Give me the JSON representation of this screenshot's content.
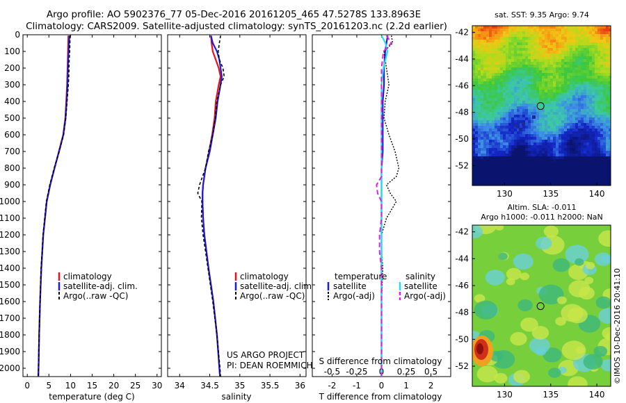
{
  "title": {
    "line1": "Argo profile: AO 5902376_77 05-Dec-2016 20161205_465 47.5278S 133.8963E",
    "line2": "Climatology: CARS2009. Satellite-adjusted climatology: synTS_20161203.nc (2.2d earlier)"
  },
  "colors": {
    "climatology": "#e8101a",
    "satellite": "#1a1ad8",
    "argo": "#000000",
    "sal_satellite": "#22ddee",
    "sal_argo": "#e020e0"
  },
  "credits": {
    "project": "US ARGO PROJECT",
    "pi": "PI: DEAN ROEMMICH",
    "stamp": "©IMOS 10-Dec-2016 20:41:10"
  },
  "chart_data": [
    {
      "type": "line",
      "name": "temperature-profile",
      "xlabel": "temperature (deg C)",
      "xlim": [
        -1,
        31
      ],
      "ylim": [
        2050,
        0
      ],
      "xticks": [
        "0",
        "5",
        "10",
        "15",
        "20",
        "25",
        "30"
      ],
      "yticks": [
        "0",
        "100",
        "200",
        "300",
        "400",
        "500",
        "600",
        "700",
        "800",
        "900",
        "1000",
        "1100",
        "1200",
        "1300",
        "1400",
        "1500",
        "1600",
        "1700",
        "1800",
        "1900",
        "2000"
      ],
      "depth": [
        5,
        50,
        100,
        150,
        200,
        250,
        300,
        400,
        500,
        600,
        700,
        800,
        900,
        1000,
        1200,
        1400,
        1600,
        1800,
        2000,
        2050
      ],
      "series": [
        {
          "name": "climatology",
          "color": "#e8101a",
          "width": 2.2,
          "dash": "",
          "values": [
            9.5,
            9.45,
            9.4,
            9.35,
            9.3,
            9.25,
            9.2,
            9.0,
            8.8,
            8.3,
            7.3,
            6.3,
            5.3,
            4.5,
            3.7,
            3.25,
            2.95,
            2.75,
            2.6,
            2.55
          ]
        },
        {
          "name": "satellite-adj. clim.",
          "color": "#1a1ad8",
          "width": 2.2,
          "dash": "",
          "values": [
            9.75,
            9.65,
            9.55,
            9.45,
            9.4,
            9.35,
            9.3,
            9.1,
            8.85,
            8.35,
            7.35,
            6.3,
            5.3,
            4.5,
            3.7,
            3.25,
            2.95,
            2.75,
            2.6,
            2.55
          ]
        },
        {
          "name": "Argo(..raw -QC)",
          "color": "#000000",
          "width": 1.6,
          "dash": "4,3",
          "values": [
            9.9,
            9.85,
            9.8,
            9.7,
            9.65,
            9.6,
            9.5,
            9.2,
            8.9,
            8.4,
            7.4,
            6.2,
            5.2,
            4.4,
            3.65,
            3.2,
            2.95,
            2.75,
            2.6,
            2.55
          ]
        }
      ],
      "legend": {
        "placement": "middle",
        "items": [
          "climatology",
          "satellite-adj. clim.",
          "Argo(..raw -QC)"
        ]
      }
    },
    {
      "type": "line",
      "name": "salinity-profile",
      "xlabel": "salinity",
      "xlim": [
        33.8,
        36.1
      ],
      "ylim": [
        2050,
        0
      ],
      "xticks": [
        "34",
        "34.5",
        "35",
        "35.5",
        "36"
      ],
      "depth": [
        5,
        50,
        100,
        150,
        200,
        250,
        300,
        400,
        500,
        600,
        700,
        800,
        900,
        950,
        1000,
        1100,
        1200,
        1400,
        1600,
        1800,
        2000,
        2050
      ],
      "series": [
        {
          "name": "climatology",
          "color": "#e8101a",
          "width": 2.2,
          "dash": "",
          "values": [
            34.52,
            34.53,
            34.55,
            34.6,
            34.65,
            34.68,
            34.65,
            34.6,
            34.58,
            34.54,
            34.49,
            34.43,
            34.39,
            34.38,
            34.38,
            34.39,
            34.41,
            34.48,
            34.56,
            34.62,
            34.66,
            34.67
          ]
        },
        {
          "name": "satellite-adj. clim.",
          "color": "#1a1ad8",
          "width": 2.2,
          "dash": "",
          "values": [
            34.52,
            34.55,
            34.62,
            34.66,
            34.68,
            34.7,
            34.68,
            34.63,
            34.6,
            34.55,
            34.5,
            34.43,
            34.39,
            34.38,
            34.38,
            34.39,
            34.41,
            34.48,
            34.56,
            34.62,
            34.66,
            34.67
          ]
        },
        {
          "name": "Argo(..raw -QC)",
          "color": "#000000",
          "width": 1.6,
          "dash": "4,3",
          "values": [
            34.68,
            34.66,
            34.64,
            34.66,
            34.72,
            34.74,
            34.68,
            34.62,
            34.59,
            34.55,
            34.48,
            34.43,
            34.33,
            34.3,
            34.37,
            34.36,
            34.39,
            34.47,
            34.55,
            34.62,
            34.67,
            34.68
          ]
        }
      ],
      "legend": {
        "placement": "middle",
        "items": [
          "climatology",
          "satellite-adj. clim.",
          "Argo(..raw -QC)"
        ]
      }
    },
    {
      "type": "line",
      "name": "difference-profile",
      "xlabel": "T difference from climatology",
      "xlabel_top": "S difference from climatology",
      "xlim": [
        -2.8,
        2.8
      ],
      "s_xlim": [
        -0.7,
        0.7
      ],
      "ylim": [
        2050,
        0
      ],
      "xticks": [
        "-2",
        "-1",
        "0",
        "1",
        "2"
      ],
      "s_xticks": [
        "-0.5",
        "-0.25",
        "0",
        "0.25",
        "0.5"
      ],
      "depth": [
        5,
        50,
        100,
        200,
        300,
        400,
        500,
        600,
        700,
        800,
        850,
        900,
        950,
        1000,
        1100,
        1200,
        1300,
        1400,
        1600,
        1800,
        2000,
        2050
      ],
      "series": [
        {
          "name": "temperature satellite",
          "quantity": "T",
          "color": "#1a1ad8",
          "width": 2.2,
          "dash": "",
          "values": [
            0.25,
            0.2,
            0.15,
            0.1,
            0.1,
            0.05,
            0.05,
            0.05,
            0.05,
            0.0,
            0.0,
            0.0,
            0.0,
            0.0,
            0.0,
            0.0,
            0.0,
            0.0,
            0.0,
            0.0,
            0.0,
            0.0
          ]
        },
        {
          "name": "temperature Argo(-adj)",
          "quantity": "T",
          "color": "#000000",
          "width": 1.4,
          "dash": "2,2",
          "values": [
            0.4,
            0.45,
            0.1,
            0.2,
            0.3,
            0.15,
            0.1,
            0.3,
            0.55,
            0.7,
            0.6,
            0.2,
            0.35,
            0.6,
            0.2,
            0.0,
            0.0,
            0.05,
            0.0,
            0.0,
            0.0,
            0.0
          ]
        },
        {
          "name": "salinity satellite",
          "quantity": "S",
          "color": "#22ddee",
          "width": 2.2,
          "dash": "",
          "values": [
            0.0,
            0.04,
            0.06,
            0.02,
            0.0,
            0.0,
            0.0,
            0.0,
            0.0,
            0.0,
            0.0,
            0.0,
            0.0,
            0.0,
            0.0,
            0.0,
            0.0,
            0.0,
            0.0,
            0.0,
            0.0,
            0.0
          ]
        },
        {
          "name": "salinity Argo(-adj)",
          "quantity": "S",
          "color": "#e020e0",
          "width": 2,
          "dash": "7,4",
          "values": [
            0.05,
            0.1,
            0.02,
            0.0,
            0.0,
            0.0,
            0.0,
            0.0,
            0.0,
            0.0,
            0.0,
            -0.05,
            -0.04,
            0.0,
            0.0,
            -0.02,
            -0.02,
            0.0,
            0.0,
            0.0,
            0.0,
            0.0
          ]
        }
      ],
      "legend": {
        "temperature_title": "temperature",
        "salinity_title": "salinity",
        "items": [
          "satellite",
          "Argo(-adj)",
          "satellite",
          "Argo(-adj)"
        ]
      }
    },
    {
      "type": "heatmap",
      "name": "sst-map",
      "title": "sat. SST: 9.35 Argo: 9.74",
      "xlim": [
        126.5,
        141.5
      ],
      "ylim": [
        -53.5,
        -41.5
      ],
      "xticks": [
        "130",
        "135",
        "140"
      ],
      "yticks": [
        "-42",
        "-44",
        "-46",
        "-48",
        "-50",
        "-52"
      ],
      "argo_position": {
        "lon": 133.9,
        "lat": -47.53
      }
    },
    {
      "type": "heatmap",
      "name": "sla-map",
      "title": "Altim. SLA: -0.011",
      "subtitle": "Argo h1000: -0.011 h2000: NaN",
      "xlim": [
        126.5,
        141.5
      ],
      "ylim": [
        -53.5,
        -41.5
      ],
      "xticks": [
        "130",
        "135",
        "140"
      ],
      "yticks": [
        "-42",
        "-44",
        "-46",
        "-48",
        "-50",
        "-52"
      ],
      "argo_position": {
        "lon": 133.9,
        "lat": -47.53
      }
    }
  ]
}
